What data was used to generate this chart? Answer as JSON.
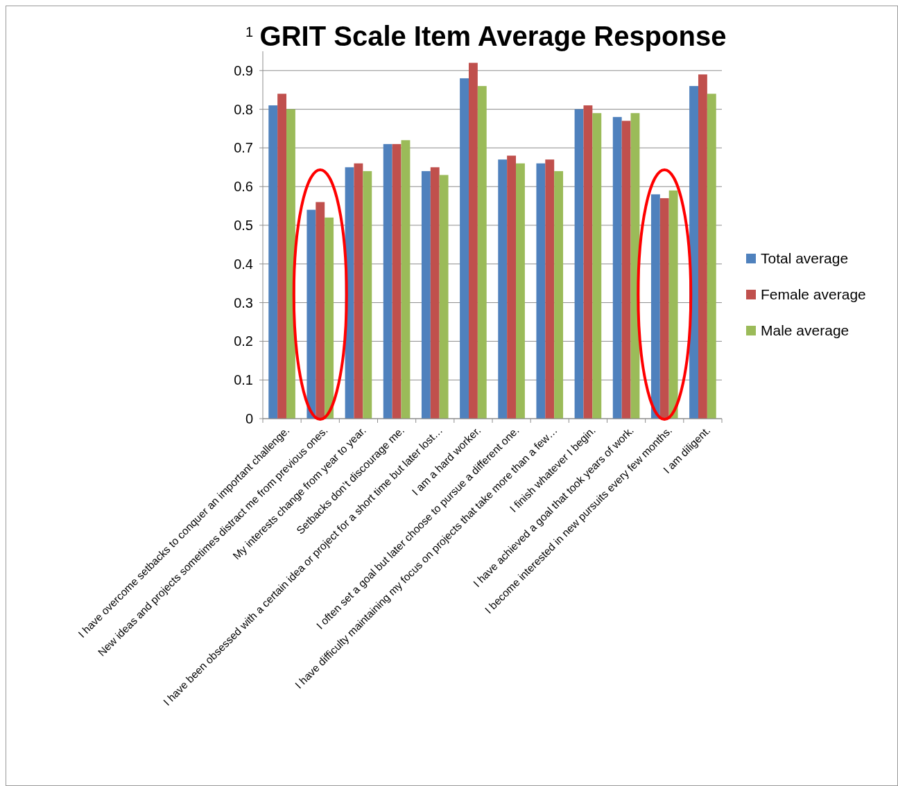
{
  "chart_data": {
    "type": "bar",
    "title": "GRIT Scale Item Average Response",
    "categories": [
      "I have overcome setbacks to conquer an important challenge.",
      "New ideas and projects sometimes distract me from previous ones.",
      "My interests change from year to year.",
      "Setbacks don’t discourage me.",
      "I have been obsessed with a certain idea or project for a short time but later lost…",
      "I am a hard worker.",
      "I often set a goal but later choose to pursue a different one.",
      "I have difficulty maintaining my focus on projects that take more than a few…",
      "I finish whatever I begin.",
      "I have achieved a goal that took years of work.",
      "I become interested in new pursuits every few months.",
      "I am diligent."
    ],
    "series": [
      {
        "name": "Total average",
        "color": "#4f81bd",
        "values": [
          0.81,
          0.54,
          0.65,
          0.71,
          0.64,
          0.88,
          0.67,
          0.66,
          0.8,
          0.78,
          0.58,
          0.86
        ]
      },
      {
        "name": "Female average",
        "color": "#c0504d",
        "values": [
          0.84,
          0.56,
          0.66,
          0.71,
          0.65,
          0.92,
          0.68,
          0.67,
          0.81,
          0.77,
          0.57,
          0.89
        ]
      },
      {
        "name": "Male average",
        "color": "#9bbb59",
        "values": [
          0.8,
          0.52,
          0.64,
          0.72,
          0.63,
          0.86,
          0.66,
          0.64,
          0.79,
          0.79,
          0.59,
          0.84
        ]
      }
    ],
    "ylim": [
      0,
      1
    ],
    "yticks": [
      0,
      0.1,
      0.2,
      0.3,
      0.4,
      0.5,
      0.6,
      0.7,
      0.8,
      0.9,
      1
    ],
    "grid": "y",
    "legend": "right"
  }
}
